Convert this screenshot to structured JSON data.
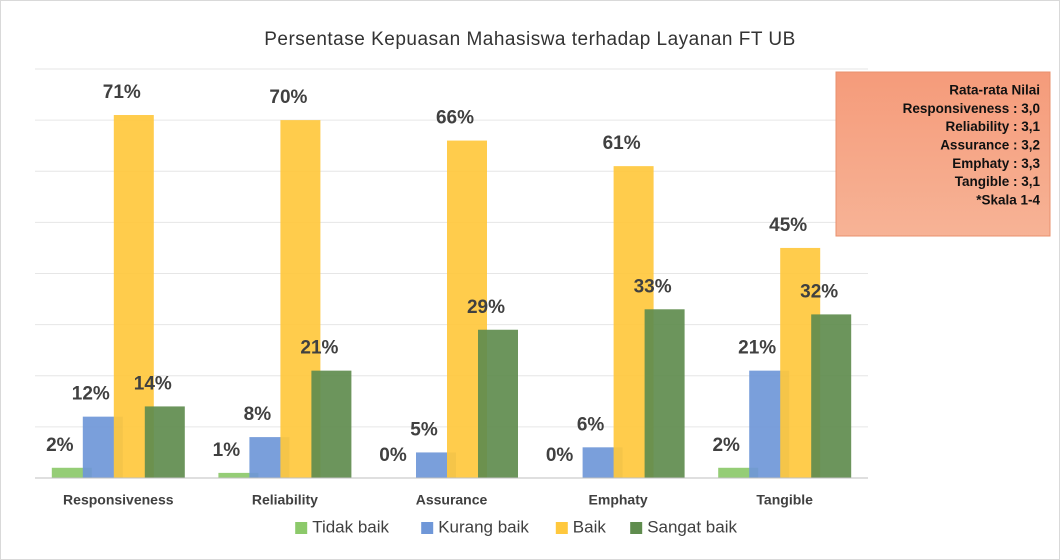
{
  "chart_data": {
    "type": "bar",
    "title": "Persentase Kepuasan Mahasiswa terhadap Layanan FT UB",
    "categories": [
      "Responsiveness",
      "Reliability",
      "Assurance",
      "Emphaty",
      "Tangible"
    ],
    "series": [
      {
        "name": "Tidak baik",
        "color": "#8cc96a",
        "values": [
          2,
          1,
          0,
          0,
          2
        ],
        "value_labels": [
          "2%",
          "1%",
          "0%",
          "0%",
          "2%"
        ]
      },
      {
        "name": "Kurang baik",
        "color": "#6f97d8",
        "values": [
          12,
          8,
          5,
          6,
          21
        ],
        "value_labels": [
          "12%",
          "8%",
          "5%",
          "6%",
          "21%"
        ]
      },
      {
        "name": "Baik",
        "color": "#ffc83d",
        "values": [
          71,
          70,
          66,
          61,
          45
        ],
        "value_labels": [
          "71%",
          "70%",
          "66%",
          "61%",
          "45%"
        ]
      },
      {
        "name": "Sangat baik",
        "color": "#5f8c4e",
        "values": [
          14,
          21,
          29,
          33,
          32
        ],
        "value_labels": [
          "14%",
          "21%",
          "29%",
          "33%",
          "32%"
        ]
      }
    ],
    "ylim": [
      0,
      80
    ],
    "yticks": [
      0,
      10,
      20,
      30,
      40,
      50,
      60,
      70,
      80
    ],
    "grid": true,
    "legend": "bottom",
    "annotation": [
      "Rata-rata Nilai",
      "Responsiveness : 3,0",
      "Reliability : 3,1",
      "Assurance : 3,2",
      "Emphaty : 3,3",
      "Tangible : 3,1",
      "*Skala 1-4"
    ]
  }
}
